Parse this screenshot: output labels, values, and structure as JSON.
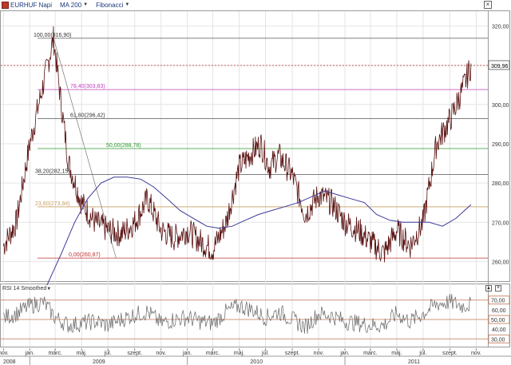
{
  "toolbar": {
    "symbol_label": "EURHUF Napi",
    "ma_label": "MA 200",
    "fib_label": "Fibonacci",
    "close_glyph": "×"
  },
  "colors": {
    "price": "#5a1212",
    "ma": "#3a3a9a",
    "rsi": "#666666",
    "current_line": "#c03030",
    "grid": "#e4e4e4",
    "fib_100": "#555555",
    "fib_786": "#c040c0",
    "fib_618": "#555555",
    "fib_50": "#2a9a2a",
    "fib_382": "#555555",
    "fib_236": "#c8a060",
    "fib_0": "#c03030",
    "rsi_70": "#c07050",
    "rsi_50": "#c07050",
    "rsi_30": "#c07050",
    "fib_text": "#333333"
  },
  "chart_data": {
    "type": "line",
    "title": "EURHUF Napi",
    "x_months": [
      {
        "label": "nov.",
        "year": 2008
      },
      {
        "label": "jan.",
        "year": 2009
      },
      {
        "label": "márc.",
        "year": 2009
      },
      {
        "label": "máj.",
        "year": 2009
      },
      {
        "label": "júl.",
        "year": 2009
      },
      {
        "label": "szept.",
        "year": 2009
      },
      {
        "label": "nov.",
        "year": 2009
      },
      {
        "label": "jan.",
        "year": 2010
      },
      {
        "label": "márc.",
        "year": 2010
      },
      {
        "label": "máj.",
        "year": 2010
      },
      {
        "label": "júl.",
        "year": 2010
      },
      {
        "label": "szept.",
        "year": 2010
      },
      {
        "label": "nov.",
        "year": 2010
      },
      {
        "label": "jan.",
        "year": 2011
      },
      {
        "label": "márc.",
        "year": 2011
      },
      {
        "label": "máj.",
        "year": 2011
      },
      {
        "label": "júl.",
        "year": 2011
      },
      {
        "label": "szept.",
        "year": 2011
      },
      {
        "label": "nov.",
        "year": 2011
      }
    ],
    "year_labels": [
      "2008",
      "2009",
      "2010",
      "2011"
    ],
    "y_ticks": [
      "320,00",
      "310,00",
      "300,00",
      "290,00",
      "280,00",
      "270,00",
      "260,00"
    ],
    "ylim": [
      255,
      324
    ],
    "current_value": 309.96,
    "current_label": "309,96",
    "series": [
      {
        "name": "EURHUF Napi",
        "x": [
          "2008-11-01",
          "2008-12-01",
          "2009-01-01",
          "2009-02-01",
          "2009-02-25",
          "2009-03-15",
          "2009-04-01",
          "2009-05-01",
          "2009-06-01",
          "2009-07-01",
          "2009-08-01",
          "2009-09-01",
          "2009-10-01",
          "2009-11-01",
          "2009-12-01",
          "2010-01-01",
          "2010-02-01",
          "2010-03-01",
          "2010-04-01",
          "2010-05-01",
          "2010-06-01",
          "2010-06-20",
          "2010-07-10",
          "2010-08-01",
          "2010-09-01",
          "2010-10-01",
          "2010-11-01",
          "2010-12-01",
          "2011-01-01",
          "2011-02-01",
          "2011-03-01",
          "2011-04-01",
          "2011-05-01",
          "2011-06-01",
          "2011-07-01",
          "2011-08-01",
          "2011-09-01",
          "2011-10-01",
          "2011-10-20"
        ],
        "values": [
          264,
          270,
          290,
          305,
          316.9,
          300,
          285,
          275,
          270,
          268,
          267,
          270,
          276,
          268,
          266,
          268,
          265,
          263,
          270,
          284,
          288,
          290,
          284,
          287,
          282,
          272,
          277,
          275,
          270,
          268,
          265,
          262,
          268,
          264,
          270,
          290,
          296,
          304,
          309.96
        ]
      },
      {
        "name": "MA 200",
        "x": [
          "2009-02-10",
          "2009-03-15",
          "2009-04-15",
          "2009-05-15",
          "2009-06-15",
          "2009-07-15",
          "2009-08-15",
          "2009-09-15",
          "2009-10-15",
          "2009-11-15",
          "2009-12-15",
          "2010-01-15",
          "2010-02-15",
          "2010-03-15",
          "2010-04-15",
          "2010-05-15",
          "2010-06-15",
          "2010-07-15",
          "2010-08-15",
          "2010-09-15",
          "2010-10-15",
          "2010-11-15",
          "2010-12-15",
          "2011-01-15",
          "2011-02-15",
          "2011-03-15",
          "2011-04-15",
          "2011-05-15",
          "2011-06-15",
          "2011-07-15",
          "2011-08-15",
          "2011-09-15",
          "2011-10-20"
        ],
        "values": [
          254,
          262,
          270,
          276,
          280,
          281.5,
          281.5,
          281,
          279,
          276,
          273,
          271,
          269,
          268.5,
          269,
          270.5,
          272,
          273,
          274,
          275,
          276.5,
          278,
          277,
          276,
          275,
          272,
          270.5,
          270,
          270,
          270,
          269,
          271,
          274.5
        ]
      }
    ],
    "fibonacci": [
      {
        "label": "100,00(316,90)",
        "value": 316.9,
        "color_key": "fib_100"
      },
      {
        "label": "78,40(303,83)",
        "value": 303.83,
        "color_key": "fib_786"
      },
      {
        "label": "61,80(296,42)",
        "value": 296.42,
        "color_key": "fib_618"
      },
      {
        "label": "50,00(288,78)",
        "value": 288.78,
        "color_key": "fib_50"
      },
      {
        "label": "38,20(282,15)",
        "value": 282.15,
        "color_key": "fib_382"
      },
      {
        "label": "23,60(273,94)",
        "value": 273.94,
        "color_key": "fib_236"
      },
      {
        "label": "0,00(260,87)",
        "value": 260.87,
        "color_key": "fib_0"
      }
    ],
    "fib_start": "2009-02-25",
    "fib_end": "2009-08-01",
    "rsi": {
      "title": "RSI 14 Smoothed",
      "ylim": [
        22,
        78
      ],
      "levels": [
        {
          "label": "70,00",
          "value": 70,
          "color_key": "rsi_70"
        },
        {
          "label": "50,00",
          "value": 50,
          "color_key": "rsi_50"
        },
        {
          "label": "30,00",
          "value": 30,
          "color_key": "rsi_30"
        }
      ],
      "y_ticks": [
        "60,00",
        "40,00"
      ],
      "x": [
        "2008-11-01",
        "2008-12-01",
        "2009-01-01",
        "2009-02-01",
        "2009-03-01",
        "2009-04-01",
        "2009-05-01",
        "2009-06-01",
        "2009-07-01",
        "2009-08-01",
        "2009-09-01",
        "2009-10-01",
        "2009-11-01",
        "2009-12-01",
        "2010-01-01",
        "2010-02-01",
        "2010-03-01",
        "2010-04-01",
        "2010-05-01",
        "2010-06-01",
        "2010-07-01",
        "2010-08-01",
        "2010-09-01",
        "2010-10-01",
        "2010-11-01",
        "2010-12-01",
        "2011-01-01",
        "2011-02-01",
        "2011-03-01",
        "2011-04-01",
        "2011-05-01",
        "2011-06-01",
        "2011-07-01",
        "2011-08-01",
        "2011-09-01",
        "2011-10-01",
        "2011-10-20"
      ],
      "values": [
        52,
        56,
        64,
        68,
        52,
        44,
        46,
        48,
        44,
        50,
        55,
        58,
        46,
        50,
        52,
        48,
        46,
        58,
        64,
        60,
        52,
        58,
        50,
        42,
        56,
        54,
        48,
        46,
        44,
        44,
        56,
        48,
        56,
        66,
        68,
        64,
        66
      ]
    }
  }
}
